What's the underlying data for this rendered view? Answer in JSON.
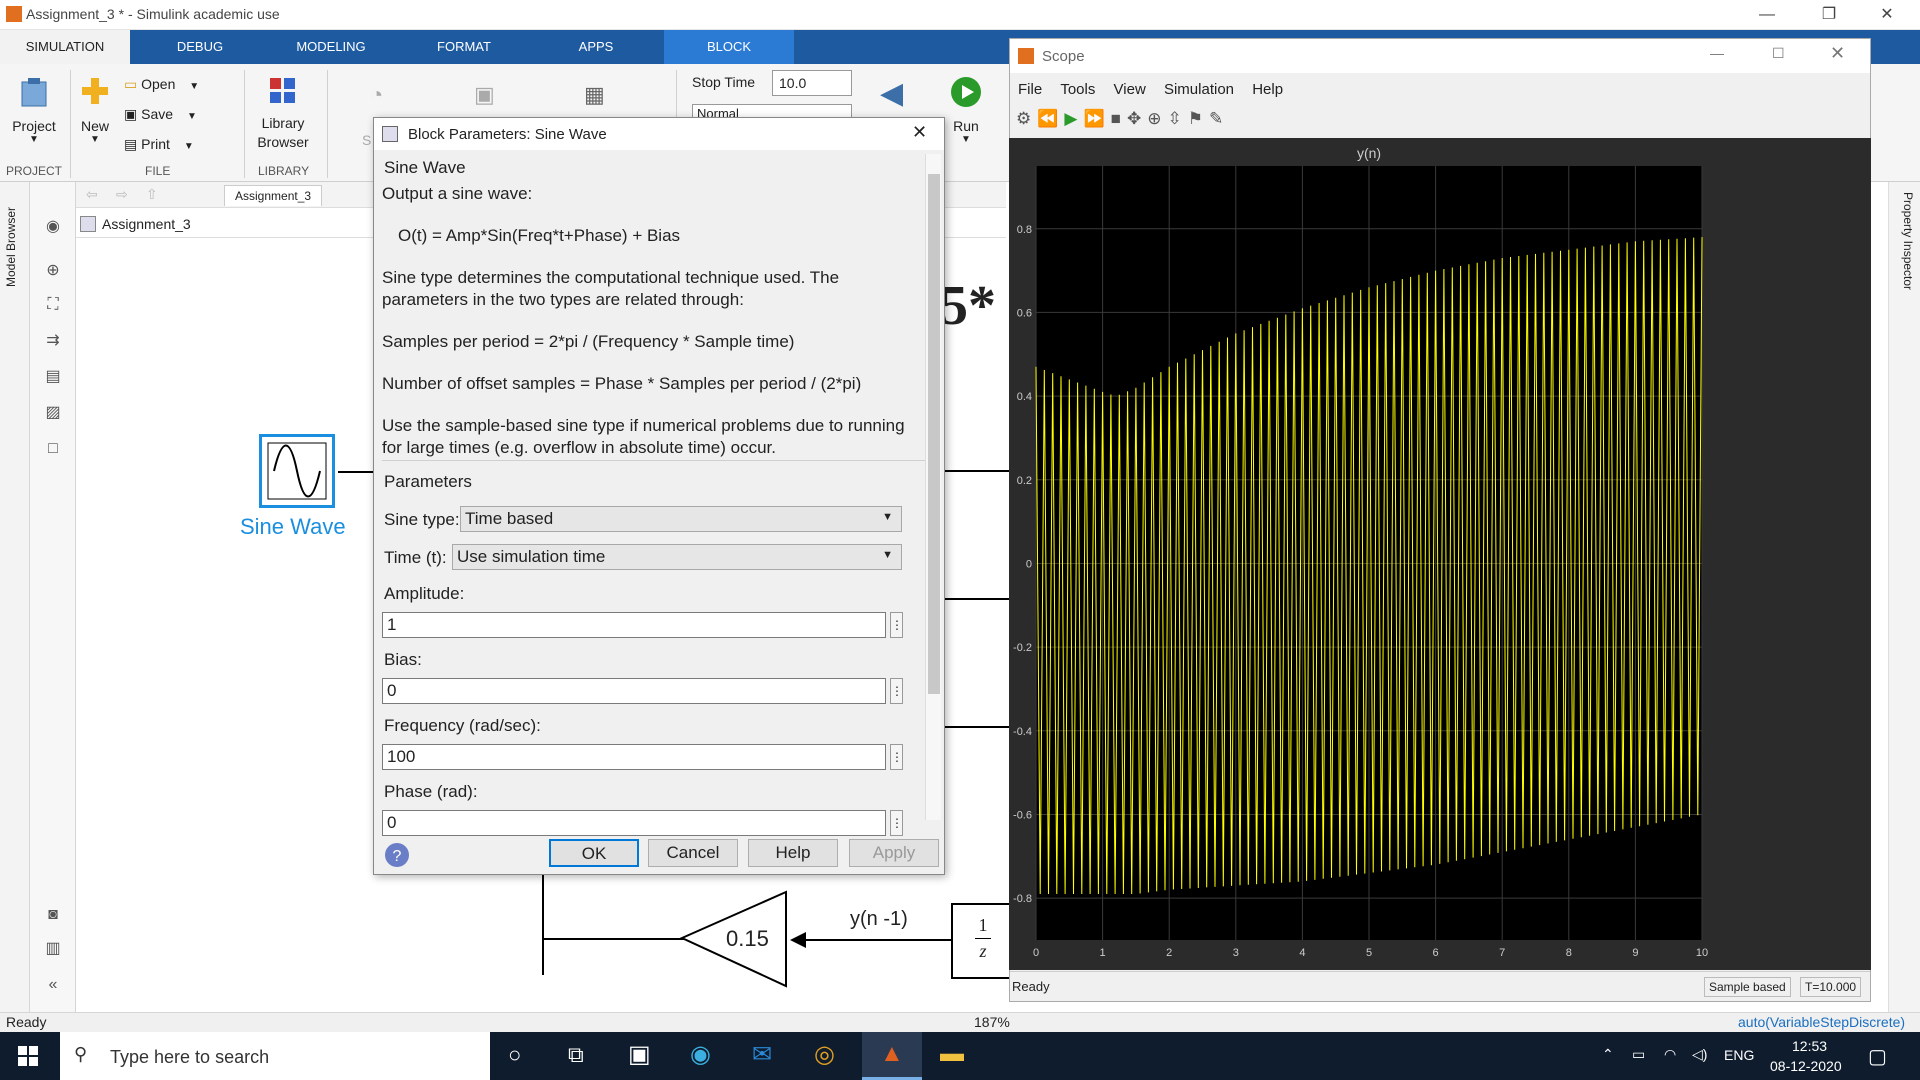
{
  "window": {
    "title": "Assignment_3 * - Simulink academic use"
  },
  "tabs": [
    {
      "label": "SIMULATION"
    },
    {
      "label": "DEBUG"
    },
    {
      "label": "MODELING"
    },
    {
      "label": "FORMAT"
    },
    {
      "label": "APPS"
    },
    {
      "label": "BLOCK"
    }
  ],
  "ribbon": {
    "project": "Project",
    "new": "New",
    "open": "Open",
    "save": "Save",
    "print": "Print",
    "library_browser_1": "Library",
    "library_browser_2": "Browser",
    "group_project": "PROJECT",
    "group_file": "FILE",
    "group_library": "LIBRARY",
    "stop_time_label": "Stop Time",
    "stop_time_value": "10.0",
    "mode_value": "Normal",
    "run": "Run",
    "partial_s": "S"
  },
  "sidebar": {
    "model_browser": "Model Browser",
    "property_inspector": "Property Inspector"
  },
  "nav": {
    "tab": "Assignment_3",
    "path": "Assignment_3"
  },
  "canvas": {
    "sine_label": "Sine Wave",
    "gain_value": "0.15",
    "delay_label": "y(n -1)",
    "unit_delay_num": "1",
    "unit_delay_den": "z",
    "big_text": "5*"
  },
  "status": {
    "left": "Ready",
    "zoom": "187%",
    "solver": "auto(VariableStepDiscrete)"
  },
  "dialog": {
    "title": "Block Parameters: Sine Wave",
    "section": "Sine Wave",
    "line1": "Output a sine wave:",
    "line2": "O(t) = Amp*Sin(Freq*t+Phase) + Bias",
    "line3": "Sine type determines the computational technique used. The",
    "line4": "parameters in the two types are related through:",
    "line5": "Samples per period = 2*pi / (Frequency * Sample time)",
    "line6": "Number of offset samples = Phase * Samples per period / (2*pi)",
    "line7": "Use the sample-based sine type if numerical problems due to running",
    "line8": "for large times (e.g. overflow in absolute time) occur.",
    "params": "Parameters",
    "sine_type_label": "Sine type:",
    "sine_type_value": "Time based",
    "time_label": "Time (t):",
    "time_value": "Use simulation time",
    "amp_label": "Amplitude:",
    "amp_value": "1",
    "bias_label": "Bias:",
    "bias_value": "0",
    "freq_label": "Frequency (rad/sec):",
    "freq_value": "100",
    "phase_label": "Phase (rad):",
    "phase_value": "0",
    "ok": "OK",
    "cancel": "Cancel",
    "help": "Help",
    "apply": "Apply",
    "dots": "⋮"
  },
  "scope": {
    "title": "Scope",
    "menu": [
      "File",
      "Tools",
      "View",
      "Simulation",
      "Help"
    ],
    "status_left": "Ready",
    "status_mode": "Sample based",
    "status_time": "T=10.000"
  },
  "chart_data": {
    "type": "line",
    "title": "y(n)",
    "xlim": [
      0,
      10
    ],
    "ylim": [
      -0.9,
      0.95
    ],
    "xticks": [
      0,
      1,
      2,
      3,
      4,
      5,
      6,
      7,
      8,
      9,
      10
    ],
    "yticks": [
      -0.8,
      -0.6,
      -0.4,
      -0.2,
      0,
      0.2,
      0.4,
      0.6,
      0.8
    ],
    "grid": true,
    "series": [
      {
        "color": "#ffff00",
        "envelope_x": [
          0,
          0.5,
          1,
          1.2,
          1.5,
          2,
          3,
          4,
          5,
          6,
          7,
          8,
          9,
          10
        ],
        "upper": [
          0.47,
          0.44,
          0.41,
          0.4,
          0.42,
          0.47,
          0.55,
          0.61,
          0.66,
          0.7,
          0.73,
          0.75,
          0.77,
          0.78
        ],
        "lower": [
          -0.79,
          -0.79,
          -0.79,
          -0.79,
          -0.79,
          -0.78,
          -0.77,
          -0.76,
          -0.74,
          -0.72,
          -0.69,
          -0.66,
          -0.63,
          -0.6
        ]
      }
    ]
  },
  "taskbar": {
    "search": "Type here to search",
    "lang": "ENG",
    "time": "12:53",
    "date": "08-12-2020"
  },
  "colors": {
    "ribbon_tab": "#1e5aa0",
    "block_tab": "#2b7bd5",
    "selection": "#1a8fe0",
    "plot_bg": "#000000",
    "trace": "#ffff00"
  }
}
